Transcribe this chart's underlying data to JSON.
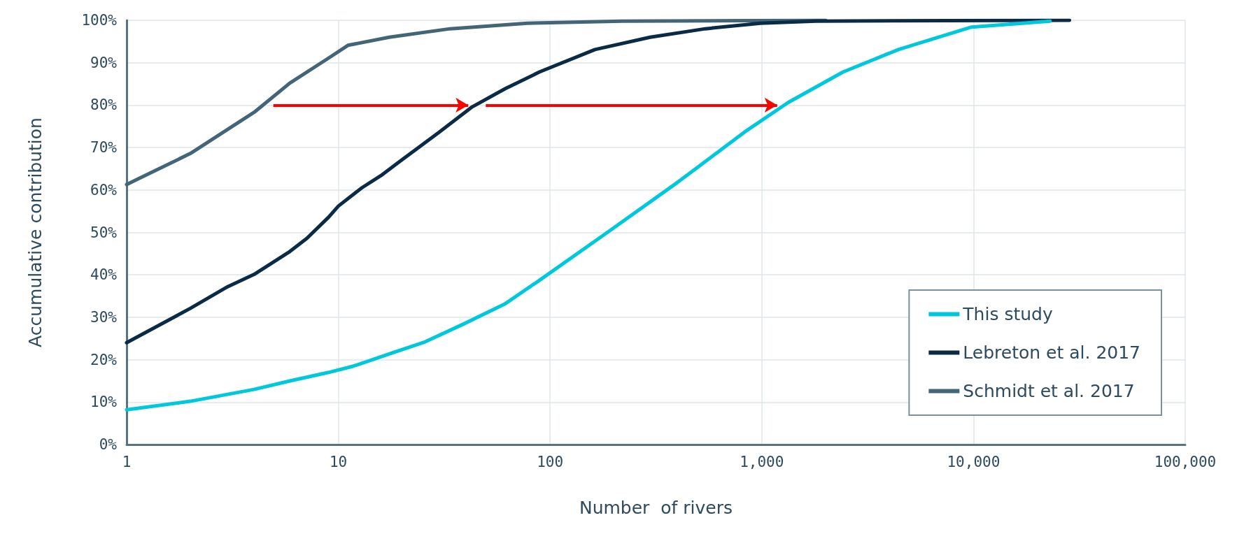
{
  "chart_data": {
    "type": "line",
    "xlabel": "Number  of rivers",
    "ylabel": "Accumulative contribution",
    "log": "x",
    "grid": true,
    "legend": "bottom right",
    "marker": "none",
    "line_style": "solid",
    "xlim": [
      1,
      100000
    ],
    "xticks": [
      1,
      10,
      100,
      {
        "value": 1000,
        "label": "1,000"
      },
      {
        "value": 10000,
        "label": "10,000"
      },
      {
        "value": 100000,
        "label": "100,000"
      }
    ],
    "ylim": [
      0,
      100
    ],
    "yticks": [
      {
        "value": 0,
        "label": "0%"
      },
      {
        "value": 10,
        "label": "10%"
      },
      {
        "value": 20,
        "label": "20%"
      },
      {
        "value": 30,
        "label": "30%"
      },
      {
        "value": 40,
        "label": "40%"
      },
      {
        "value": 50,
        "label": "50%"
      },
      {
        "value": 60,
        "label": "60%"
      },
      {
        "value": 70,
        "label": "70%"
      },
      {
        "value": 80,
        "label": "80%"
      },
      {
        "value": 90,
        "label": "90%"
      },
      {
        "value": 100,
        "label": "100%"
      }
    ],
    "series": [
      {
        "name": "This study",
        "color": "#00c8dc",
        "x": [
          1,
          2,
          4,
          5.9,
          9,
          11.8,
          18.5,
          25.7,
          39,
          61,
          89,
          189,
          400,
          848,
          1330,
          2420,
          4420,
          9800,
          23000
        ],
        "values": [
          8.2,
          10.2,
          13,
          15,
          17,
          18.5,
          21.8,
          24.2,
          28.4,
          33.1,
          38.7,
          50.2,
          61.8,
          74,
          80.6,
          87.8,
          93.1,
          98.4,
          99.8
        ]
      },
      {
        "name": "Lebreton et al. 2017",
        "color": "#0a2a45",
        "x": [
          1,
          2,
          3,
          4,
          5.9,
          7.1,
          9,
          10,
          12.9,
          15.9,
          19.1,
          29.9,
          42.9,
          61.5,
          89,
          163,
          297,
          541,
          985,
          1795,
          28400
        ],
        "values": [
          24,
          32.1,
          37.2,
          40.1,
          45.5,
          48.6,
          53.6,
          56.2,
          60.5,
          63.4,
          66.4,
          73.6,
          79.6,
          83.9,
          87.8,
          93.1,
          96,
          98,
          99.3,
          99.8,
          100
        ]
      },
      {
        "name": "Schmidt et al. 2017",
        "color": "#446478",
        "x": [
          1,
          2,
          4,
          5.9,
          9,
          11.1,
          17.4,
          33.7,
          78,
          220,
          2000
        ],
        "values": [
          61.3,
          68.6,
          78.3,
          85.2,
          91.1,
          94.1,
          96,
          98,
          99.3,
          99.8,
          100
        ]
      }
    ]
  }
}
